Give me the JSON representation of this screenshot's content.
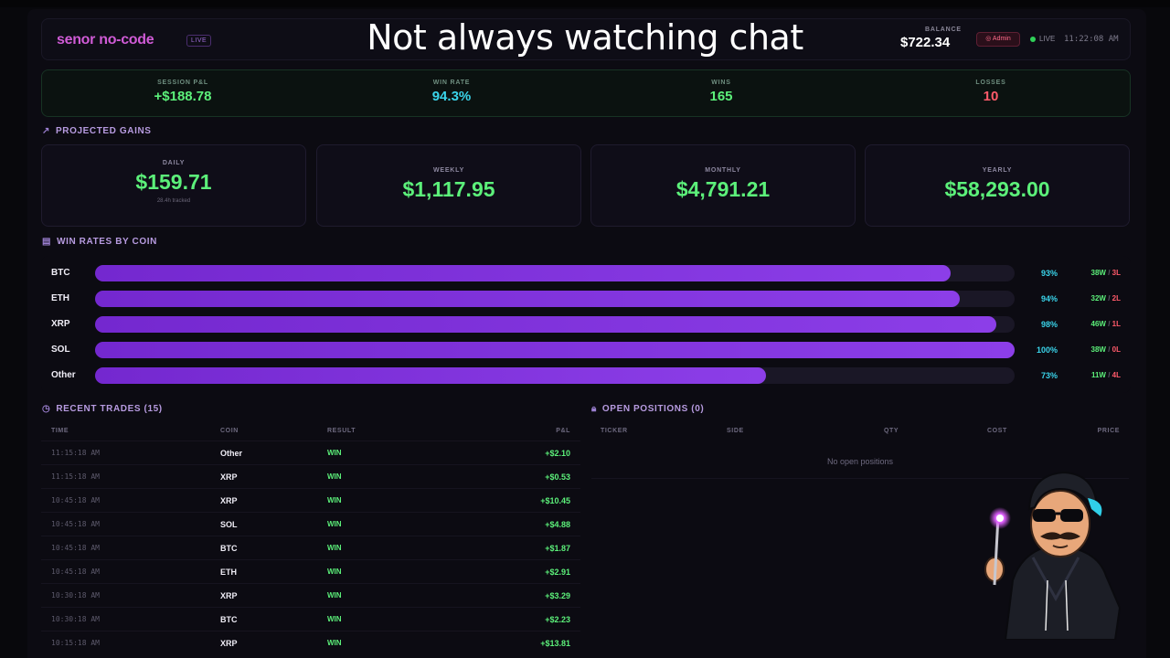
{
  "overlay_text": "Not always watching chat",
  "header": {
    "brand": "senor no-code",
    "brand_badge": "LIVE",
    "balance_label": "BALANCE",
    "balance_value": "$722.34",
    "admin_label": "Admin",
    "live_label": "LIVE",
    "clock": "11:22:08 AM"
  },
  "stats": {
    "session_pnl_label": "SESSION P&L",
    "session_pnl_value": "+$188.78",
    "win_rate_label": "WIN RATE",
    "win_rate_value": "94.3%",
    "wins_label": "WINS",
    "wins_value": "165",
    "losses_label": "LOSSES",
    "losses_value": "10"
  },
  "projected": {
    "title": "PROJECTED GAINS",
    "daily_label": "DAILY",
    "daily_value": "$159.71",
    "daily_sub": "28.4h tracked",
    "weekly_label": "WEEKLY",
    "weekly_value": "$1,117.95",
    "monthly_label": "MONTHLY",
    "monthly_value": "$4,791.21",
    "yearly_label": "YEARLY",
    "yearly_value": "$58,293.00"
  },
  "win_rates": {
    "title": "WIN RATES BY COIN",
    "rows": [
      {
        "coin": "BTC",
        "pct_label": "93%",
        "fraction": 0.93,
        "wins": "38W",
        "losses": "3L"
      },
      {
        "coin": "ETH",
        "pct_label": "94%",
        "fraction": 0.94,
        "wins": "32W",
        "losses": "2L"
      },
      {
        "coin": "XRP",
        "pct_label": "98%",
        "fraction": 0.98,
        "wins": "46W",
        "losses": "1L"
      },
      {
        "coin": "SOL",
        "pct_label": "100%",
        "fraction": 1.0,
        "wins": "38W",
        "losses": "0L"
      },
      {
        "coin": "Other",
        "pct_label": "73%",
        "fraction": 0.73,
        "wins": "11W",
        "losses": "4L"
      }
    ]
  },
  "trades": {
    "title": "RECENT TRADES (15)",
    "columns": {
      "time": "TIME",
      "coin": "COIN",
      "result": "RESULT",
      "pnl": "P&L"
    },
    "rows": [
      {
        "time": "11:15:18 AM",
        "coin": "Other",
        "result": "WIN",
        "pnl": "+$2.10"
      },
      {
        "time": "11:15:18 AM",
        "coin": "XRP",
        "result": "WIN",
        "pnl": "+$0.53"
      },
      {
        "time": "10:45:18 AM",
        "coin": "XRP",
        "result": "WIN",
        "pnl": "+$10.45"
      },
      {
        "time": "10:45:18 AM",
        "coin": "SOL",
        "result": "WIN",
        "pnl": "+$4.88"
      },
      {
        "time": "10:45:18 AM",
        "coin": "BTC",
        "result": "WIN",
        "pnl": "+$1.87"
      },
      {
        "time": "10:45:18 AM",
        "coin": "ETH",
        "result": "WIN",
        "pnl": "+$2.91"
      },
      {
        "time": "10:30:18 AM",
        "coin": "XRP",
        "result": "WIN",
        "pnl": "+$3.29"
      },
      {
        "time": "10:30:18 AM",
        "coin": "BTC",
        "result": "WIN",
        "pnl": "+$2.23"
      },
      {
        "time": "10:15:18 AM",
        "coin": "XRP",
        "result": "WIN",
        "pnl": "+$13.81"
      }
    ]
  },
  "positions": {
    "title": "OPEN POSITIONS (0)",
    "columns": {
      "ticker": "TICKER",
      "side": "SIDE",
      "qty": "QTY",
      "cost": "COST",
      "price": "PRICE"
    },
    "empty_text": "No open positions"
  },
  "colors": {
    "accent_green": "#5cf07a",
    "accent_cyan": "#3ad4ea",
    "accent_red": "#ff5a6a",
    "bar_purple": "#8c3ee8",
    "brand_pink": "#d05bd6"
  }
}
